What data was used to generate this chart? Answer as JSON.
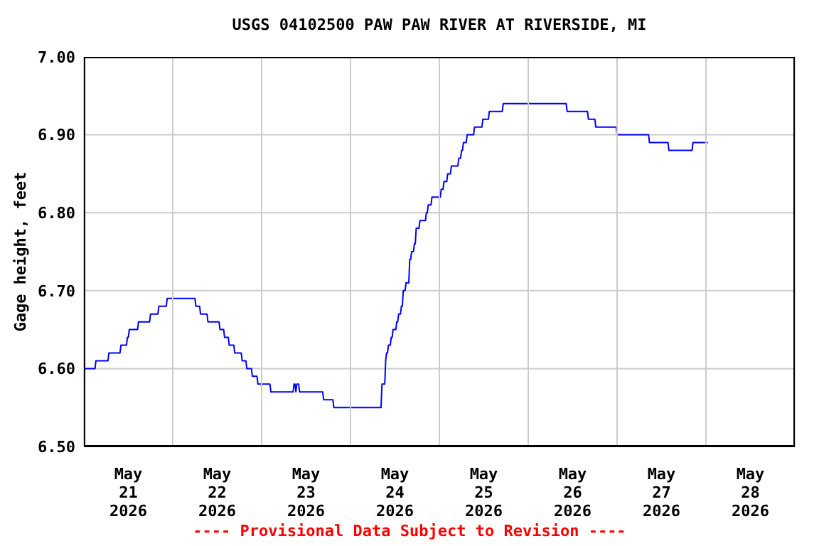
{
  "chart_data": {
    "type": "line",
    "title": "USGS 04102500 PAW PAW RIVER AT RIVERSIDE, MI",
    "ylabel": "Gage height, feet",
    "annotations": [
      "---- Provisional Data Subject to Revision ----"
    ],
    "x": [
      "2026-05-21T00:00",
      "2026-05-21T03:00",
      "2026-05-21T03:15",
      "2026-05-21T06:30",
      "2026-05-21T06:45",
      "2026-05-21T09:45",
      "2026-05-21T10:00",
      "2026-05-21T11:30",
      "2026-05-21T11:45",
      "2026-05-21T12:00",
      "2026-05-21T12:15",
      "2026-05-21T14:30",
      "2026-05-21T14:45",
      "2026-05-21T17:45",
      "2026-05-21T18:00",
      "2026-05-21T20:00",
      "2026-05-21T20:15",
      "2026-05-21T22:15",
      "2026-05-21T22:30",
      "2026-05-22T06:00",
      "2026-05-22T06:15",
      "2026-05-22T07:15",
      "2026-05-22T07:30",
      "2026-05-22T09:15",
      "2026-05-22T09:30",
      "2026-05-22T12:30",
      "2026-05-22T12:45",
      "2026-05-22T13:45",
      "2026-05-22T14:00",
      "2026-05-22T15:00",
      "2026-05-22T15:15",
      "2026-05-22T16:30",
      "2026-05-22T16:45",
      "2026-05-22T18:30",
      "2026-05-22T18:45",
      "2026-05-22T19:45",
      "2026-05-22T20:00",
      "2026-05-22T21:15",
      "2026-05-22T21:30",
      "2026-05-22T22:45",
      "2026-05-22T23:00",
      "2026-05-23T02:15",
      "2026-05-23T02:30",
      "2026-05-23T08:30",
      "2026-05-23T08:45",
      "2026-05-23T09:00",
      "2026-05-23T09:15",
      "2026-05-23T09:30",
      "2026-05-23T10:00",
      "2026-05-23T10:15",
      "2026-05-23T16:30",
      "2026-05-23T16:45",
      "2026-05-23T19:15",
      "2026-05-23T19:30",
      "2026-05-24T08:15",
      "2026-05-24T08:30",
      "2026-05-24T09:15",
      "2026-05-24T09:30",
      "2026-05-24T09:45",
      "2026-05-24T10:00",
      "2026-05-24T10:15",
      "2026-05-24T10:45",
      "2026-05-24T11:00",
      "2026-05-24T11:15",
      "2026-05-24T11:30",
      "2026-05-24T12:15",
      "2026-05-24T12:30",
      "2026-05-24T12:45",
      "2026-05-24T13:00",
      "2026-05-24T13:30",
      "2026-05-24T13:45",
      "2026-05-24T14:00",
      "2026-05-24T14:15",
      "2026-05-24T14:45",
      "2026-05-24T15:00",
      "2026-05-24T15:45",
      "2026-05-24T16:00",
      "2026-05-24T16:15",
      "2026-05-24T16:30",
      "2026-05-24T17:00",
      "2026-05-24T17:15",
      "2026-05-24T17:30",
      "2026-05-24T17:45",
      "2026-05-24T18:30",
      "2026-05-24T18:45",
      "2026-05-24T20:15",
      "2026-05-24T20:30",
      "2026-05-24T20:45",
      "2026-05-24T21:00",
      "2026-05-24T21:45",
      "2026-05-24T22:00",
      "2026-05-25T00:15",
      "2026-05-25T00:30",
      "2026-05-25T01:00",
      "2026-05-25T01:15",
      "2026-05-25T02:00",
      "2026-05-25T02:15",
      "2026-05-25T03:00",
      "2026-05-25T03:15",
      "2026-05-25T05:00",
      "2026-05-25T05:15",
      "2026-05-25T05:45",
      "2026-05-25T06:00",
      "2026-05-25T06:15",
      "2026-05-25T06:30",
      "2026-05-25T07:15",
      "2026-05-25T07:30",
      "2026-05-25T09:15",
      "2026-05-25T09:30",
      "2026-05-25T11:30",
      "2026-05-25T11:45",
      "2026-05-25T13:15",
      "2026-05-25T13:30",
      "2026-05-25T17:00",
      "2026-05-25T17:15",
      "2026-05-26T10:15",
      "2026-05-26T10:30",
      "2026-05-26T16:00",
      "2026-05-26T16:15",
      "2026-05-26T18:00",
      "2026-05-26T18:15",
      "2026-05-26T23:45",
      "2026-05-27T00:00",
      "2026-05-27T08:30",
      "2026-05-27T08:45",
      "2026-05-27T13:45",
      "2026-05-27T14:00",
      "2026-05-27T20:15",
      "2026-05-27T20:30",
      "2026-05-28T00:30"
    ],
    "series": [
      {
        "color": "#0000ff",
        "values": [
          6.6,
          6.6,
          6.61,
          6.61,
          6.62,
          6.62,
          6.63,
          6.63,
          6.64,
          6.64,
          6.65,
          6.65,
          6.66,
          6.66,
          6.67,
          6.67,
          6.68,
          6.68,
          6.69,
          6.69,
          6.68,
          6.68,
          6.67,
          6.67,
          6.66,
          6.66,
          6.65,
          6.65,
          6.64,
          6.64,
          6.63,
          6.63,
          6.62,
          6.62,
          6.61,
          6.61,
          6.6,
          6.6,
          6.59,
          6.59,
          6.58,
          6.58,
          6.57,
          6.57,
          6.58,
          6.58,
          6.57,
          6.58,
          6.58,
          6.57,
          6.57,
          6.56,
          6.56,
          6.55,
          6.55,
          6.58,
          6.58,
          6.61,
          6.62,
          6.62,
          6.63,
          6.63,
          6.64,
          6.64,
          6.65,
          6.65,
          6.66,
          6.66,
          6.67,
          6.67,
          6.68,
          6.68,
          6.7,
          6.7,
          6.71,
          6.71,
          6.74,
          6.74,
          6.75,
          6.75,
          6.76,
          6.76,
          6.78,
          6.78,
          6.79,
          6.79,
          6.8,
          6.8,
          6.81,
          6.81,
          6.82,
          6.82,
          6.83,
          6.83,
          6.84,
          6.84,
          6.85,
          6.85,
          6.86,
          6.86,
          6.87,
          6.87,
          6.88,
          6.88,
          6.89,
          6.89,
          6.9,
          6.9,
          6.91,
          6.91,
          6.92,
          6.92,
          6.93,
          6.93,
          6.94,
          6.94,
          6.93,
          6.93,
          6.92,
          6.92,
          6.91,
          6.91,
          6.9,
          6.9,
          6.89,
          6.89,
          6.88,
          6.88,
          6.89,
          6.89
        ]
      }
    ],
    "xlim": [
      "2026-05-21T00:00",
      "2026-05-29T00:00"
    ],
    "xticks": [
      {
        "value": "2026-05-21T00:00",
        "label": null
      },
      {
        "value": "2026-05-21T12:00",
        "label": "May\n21\n2026"
      },
      {
        "value": "2026-05-22T00:00",
        "label": null
      },
      {
        "value": "2026-05-22T12:00",
        "label": "May\n22\n2026"
      },
      {
        "value": "2026-05-23T00:00",
        "label": null
      },
      {
        "value": "2026-05-23T12:00",
        "label": "May\n23\n2026"
      },
      {
        "value": "2026-05-24T00:00",
        "label": null
      },
      {
        "value": "2026-05-24T12:00",
        "label": "May\n24\n2026"
      },
      {
        "value": "2026-05-25T00:00",
        "label": null
      },
      {
        "value": "2026-05-25T12:00",
        "label": "May\n25\n2026"
      },
      {
        "value": "2026-05-26T00:00",
        "label": null
      },
      {
        "value": "2026-05-26T12:00",
        "label": "May\n26\n2026"
      },
      {
        "value": "2026-05-27T00:00",
        "label": null
      },
      {
        "value": "2026-05-27T12:00",
        "label": "May\n27\n2026"
      },
      {
        "value": "2026-05-28T00:00",
        "label": null
      },
      {
        "value": "2026-05-28T12:00",
        "label": "May\n28\n2026"
      },
      {
        "value": "2026-05-29T00:00",
        "label": null
      }
    ],
    "ylim": [
      6.5,
      7.0
    ],
    "yticks": [
      {
        "value": 6.5,
        "label": "6.50"
      },
      {
        "value": 6.6,
        "label": "6.60"
      },
      {
        "value": 6.7,
        "label": "6.70"
      },
      {
        "value": 6.8,
        "label": "6.80"
      },
      {
        "value": 6.9,
        "label": "6.90"
      },
      {
        "value": 7.0,
        "label": "7.00"
      }
    ],
    "grid": true,
    "legend": false,
    "marker": "none",
    "line_style": "solid"
  }
}
